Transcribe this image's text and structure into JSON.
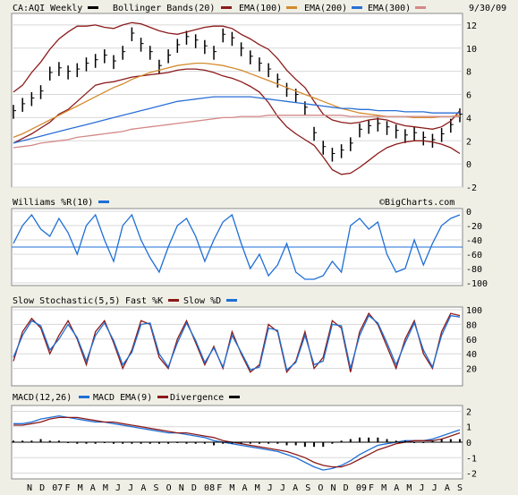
{
  "date": "9/30/09",
  "watermark": "©BigCharts.com",
  "colors": {
    "price": "#000000",
    "bollinger": "#8b1a1a",
    "ema100": "#d48a2c",
    "ema200": "#2a6fd6",
    "ema300": "#d48888",
    "williams": "#1e6fd6",
    "fast_k": "#8b1a1a",
    "slow_d": "#1e6fd6",
    "macd": "#1e6fd6",
    "macd_ema": "#8b1a1a",
    "divergence": "#000000"
  },
  "x_labels": [
    "N",
    "D",
    "07",
    "F",
    "M",
    "A",
    "M",
    "J",
    "J",
    "A",
    "S",
    "O",
    "N",
    "D",
    "08",
    "F",
    "M",
    "A",
    "M",
    "J",
    "J",
    "A",
    "S",
    "O",
    "N",
    "D",
    "09",
    "F",
    "M",
    "A",
    "M",
    "J",
    "J",
    "A",
    "S"
  ],
  "chart_data": [
    {
      "type": "line",
      "title": "CA:AQI Weekly",
      "legend": [
        {
          "label": "Bollinger Bands(20)",
          "color": "#8b1a1a"
        },
        {
          "label": "EMA(100)",
          "color": "#d48a2c"
        },
        {
          "label": "EMA(200)",
          "color": "#2a6fd6"
        },
        {
          "label": "EMA(300)",
          "color": "#d48888"
        }
      ],
      "ylim": [
        -2,
        13
      ],
      "yticks": [
        -2,
        0,
        2,
        4,
        6,
        8,
        10,
        12
      ],
      "series": [
        {
          "name": "Price",
          "values": [
            4.5,
            5.1,
            5.6,
            6.2,
            7.8,
            8.2,
            7.9,
            8.1,
            8.6,
            8.9,
            9.3,
            8.8,
            9.6,
            11.2,
            10.3,
            9.6,
            8.4,
            9.3,
            10.2,
            10.9,
            10.6,
            10.1,
            9.6,
            11.1,
            10.8,
            9.9,
            9.2,
            8.6,
            8.1,
            7.2,
            6.4,
            5.9,
            4.8,
            2.6,
            1.4,
            0.8,
            1.1,
            1.7,
            2.9,
            3.2,
            3.4,
            3.1,
            2.8,
            2.4,
            2.6,
            2.2,
            2.0,
            2.5,
            3.3,
            4.2
          ]
        },
        {
          "name": "Bollinger Upper",
          "values": [
            6.2,
            6.8,
            7.9,
            8.8,
            9.9,
            10.8,
            11.4,
            11.9,
            11.9,
            12.0,
            11.8,
            11.7,
            12.0,
            12.2,
            12.1,
            11.8,
            11.5,
            11.3,
            11.2,
            11.4,
            11.6,
            11.8,
            11.9,
            11.9,
            11.7,
            11.2,
            10.8,
            10.3,
            9.9,
            9.1,
            8.1,
            7.3,
            6.6,
            5.4,
            4.3,
            3.8,
            3.6,
            3.5,
            3.6,
            3.8,
            3.9,
            3.8,
            3.5,
            3.3,
            3.2,
            3.1,
            3.0,
            3.2,
            3.7,
            4.6
          ]
        },
        {
          "name": "Bollinger Lower",
          "values": [
            1.8,
            2.2,
            2.6,
            3.1,
            3.6,
            4.3,
            4.7,
            5.4,
            6.1,
            6.8,
            7.0,
            7.1,
            7.3,
            7.5,
            7.6,
            7.7,
            7.8,
            7.9,
            8.1,
            8.2,
            8.2,
            8.1,
            7.9,
            7.6,
            7.4,
            7.1,
            6.7,
            6.2,
            5.3,
            4.1,
            3.2,
            2.6,
            2.1,
            1.6,
            0.6,
            -0.5,
            -0.9,
            -0.8,
            -0.3,
            0.3,
            0.9,
            1.4,
            1.7,
            1.9,
            2.0,
            2.0,
            1.9,
            1.7,
            1.4,
            0.9
          ]
        },
        {
          "name": "EMA(100)",
          "values": [
            2.3,
            2.6,
            3.0,
            3.4,
            3.8,
            4.2,
            4.6,
            5.0,
            5.4,
            5.8,
            6.2,
            6.6,
            6.9,
            7.3,
            7.6,
            7.9,
            8.1,
            8.3,
            8.5,
            8.6,
            8.7,
            8.7,
            8.6,
            8.5,
            8.3,
            8.1,
            7.8,
            7.5,
            7.2,
            6.9,
            6.6,
            6.3,
            6.0,
            5.7,
            5.4,
            5.1,
            4.8,
            4.6,
            4.4,
            4.3,
            4.2,
            4.1,
            4.1,
            4.1,
            4.0,
            4.0,
            4.0,
            4.1,
            4.1,
            4.2
          ]
        },
        {
          "name": "EMA(200)",
          "values": [
            1.8,
            2.0,
            2.2,
            2.4,
            2.6,
            2.8,
            3.0,
            3.2,
            3.4,
            3.6,
            3.8,
            4.0,
            4.2,
            4.4,
            4.6,
            4.8,
            5.0,
            5.2,
            5.4,
            5.5,
            5.6,
            5.7,
            5.8,
            5.8,
            5.8,
            5.8,
            5.8,
            5.7,
            5.6,
            5.5,
            5.4,
            5.3,
            5.2,
            5.1,
            5.0,
            4.9,
            4.8,
            4.8,
            4.7,
            4.7,
            4.6,
            4.6,
            4.6,
            4.5,
            4.5,
            4.5,
            4.4,
            4.4,
            4.4,
            4.4
          ]
        },
        {
          "name": "EMA(300)",
          "values": [
            1.4,
            1.5,
            1.6,
            1.8,
            1.9,
            2.0,
            2.1,
            2.3,
            2.4,
            2.5,
            2.6,
            2.7,
            2.8,
            3.0,
            3.1,
            3.2,
            3.3,
            3.4,
            3.5,
            3.6,
            3.7,
            3.8,
            3.9,
            4.0,
            4.0,
            4.1,
            4.1,
            4.1,
            4.2,
            4.2,
            4.2,
            4.2,
            4.2,
            4.2,
            4.2,
            4.2,
            4.2,
            4.1,
            4.1,
            4.1,
            4.1,
            4.1,
            4.1,
            4.1,
            4.1,
            4.1,
            4.1,
            4.1,
            4.1,
            4.1
          ]
        }
      ]
    },
    {
      "type": "line",
      "title": "Williams %R(10)",
      "legend": [
        {
          "label": "Williams %R(10)",
          "color": "#1e6fd6"
        }
      ],
      "ylim": [
        -100,
        0
      ],
      "yticks": [
        0,
        -20,
        -40,
        -60,
        -80,
        -100
      ],
      "reference_line": -50,
      "series": [
        {
          "name": "Williams %R(10)",
          "values": [
            -45,
            -20,
            -5,
            -25,
            -35,
            -10,
            -30,
            -60,
            -20,
            -5,
            -40,
            -70,
            -20,
            -5,
            -40,
            -65,
            -85,
            -50,
            -20,
            -10,
            -35,
            -70,
            -40,
            -15,
            -5,
            -45,
            -80,
            -60,
            -90,
            -75,
            -45,
            -85,
            -95,
            -95,
            -90,
            -70,
            -85,
            -20,
            -10,
            -25,
            -15,
            -60,
            -85,
            -80,
            -40,
            -75,
            -45,
            -20,
            -10,
            -5
          ]
        }
      ]
    },
    {
      "type": "line",
      "title": "Slow Stochastic(5,5)",
      "legend": [
        {
          "label": "Fast %K",
          "color": "#8b1a1a"
        },
        {
          "label": "Slow %D",
          "color": "#1e6fd6"
        }
      ],
      "ylim": [
        0,
        100
      ],
      "yticks": [
        100,
        80,
        60,
        40,
        20
      ],
      "series": [
        {
          "name": "Fast %K",
          "values": [
            30,
            70,
            88,
            75,
            40,
            65,
            85,
            60,
            25,
            70,
            85,
            55,
            20,
            45,
            85,
            80,
            35,
            20,
            60,
            85,
            55,
            25,
            50,
            20,
            70,
            40,
            15,
            25,
            80,
            70,
            15,
            30,
            70,
            20,
            35,
            85,
            75,
            15,
            70,
            95,
            80,
            50,
            20,
            60,
            85,
            40,
            20,
            70,
            95,
            92
          ]
        },
        {
          "name": "Slow %D",
          "values": [
            35,
            65,
            85,
            78,
            45,
            60,
            80,
            62,
            30,
            65,
            82,
            58,
            25,
            42,
            80,
            82,
            40,
            22,
            55,
            82,
            58,
            28,
            48,
            22,
            65,
            42,
            18,
            22,
            75,
            72,
            18,
            28,
            65,
            25,
            30,
            80,
            78,
            20,
            65,
            92,
            82,
            55,
            25,
            55,
            82,
            45,
            22,
            65,
            92,
            90
          ]
        }
      ]
    },
    {
      "type": "line",
      "title": "MACD(12,26)",
      "legend": [
        {
          "label": "MACD EMA(9)",
          "color": "#1e6fd6"
        },
        {
          "label": "Divergence",
          "color": "#8b1a1a"
        },
        {
          "label": "",
          "color": "#000000"
        }
      ],
      "ylim": [
        -2.2,
        2.2
      ],
      "yticks": [
        2,
        1,
        0,
        -1,
        -2
      ],
      "series": [
        {
          "name": "MACD",
          "values": [
            1.2,
            1.2,
            1.3,
            1.5,
            1.6,
            1.7,
            1.6,
            1.5,
            1.4,
            1.3,
            1.3,
            1.2,
            1.1,
            1.0,
            0.9,
            0.8,
            0.7,
            0.6,
            0.6,
            0.5,
            0.4,
            0.3,
            0.1,
            0.0,
            -0.1,
            -0.2,
            -0.3,
            -0.4,
            -0.5,
            -0.6,
            -0.8,
            -1.0,
            -1.3,
            -1.6,
            -1.8,
            -1.7,
            -1.5,
            -1.2,
            -0.8,
            -0.5,
            -0.2,
            -0.1,
            0.0,
            0.1,
            0.1,
            0.1,
            0.2,
            0.4,
            0.6,
            0.8
          ]
        },
        {
          "name": "MACD EMA(9)",
          "values": [
            1.1,
            1.1,
            1.2,
            1.3,
            1.5,
            1.6,
            1.6,
            1.6,
            1.5,
            1.4,
            1.3,
            1.3,
            1.2,
            1.1,
            1.0,
            0.9,
            0.8,
            0.7,
            0.6,
            0.6,
            0.5,
            0.4,
            0.3,
            0.1,
            0.0,
            -0.1,
            -0.2,
            -0.3,
            -0.4,
            -0.5,
            -0.6,
            -0.8,
            -1.0,
            -1.3,
            -1.5,
            -1.6,
            -1.6,
            -1.4,
            -1.1,
            -0.8,
            -0.5,
            -0.3,
            -0.1,
            0.0,
            0.1,
            0.1,
            0.1,
            0.2,
            0.4,
            0.6
          ]
        },
        {
          "name": "Divergence",
          "values": [
            0.1,
            0.1,
            0.1,
            0.2,
            0.1,
            0.1,
            0.0,
            -0.1,
            -0.1,
            -0.1,
            0.0,
            -0.1,
            -0.1,
            -0.1,
            -0.1,
            -0.1,
            -0.1,
            -0.1,
            0.0,
            -0.1,
            -0.1,
            -0.1,
            -0.2,
            -0.1,
            -0.1,
            -0.1,
            -0.1,
            -0.1,
            -0.1,
            -0.1,
            -0.2,
            -0.2,
            -0.3,
            -0.3,
            -0.3,
            -0.1,
            0.1,
            0.2,
            0.3,
            0.3,
            0.3,
            0.2,
            0.1,
            0.1,
            0.0,
            0.0,
            0.1,
            0.2,
            0.2,
            0.2
          ]
        }
      ]
    }
  ]
}
